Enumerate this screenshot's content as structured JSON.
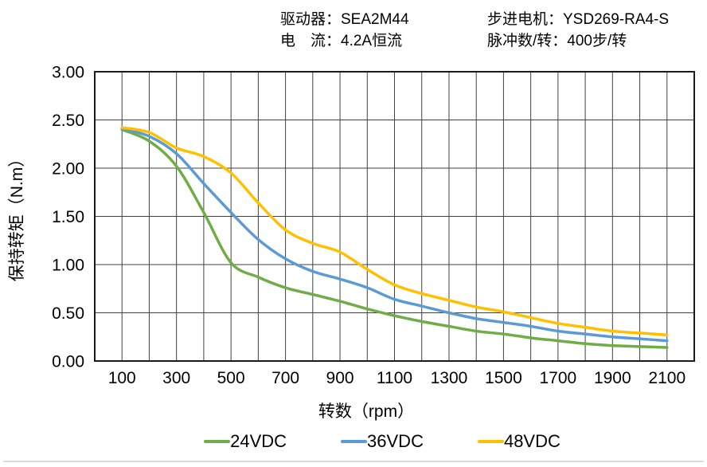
{
  "header": {
    "driver": "驱动器：SEA2M44",
    "current": "电　流：4.2A恒流",
    "motor": "步进电机：YSD269-RA4-S",
    "pulses_per_rev": "脉冲数/转：400步/转"
  },
  "chart_data": {
    "type": "line",
    "title": "",
    "xlabel": "转数（rpm）",
    "ylabel": "保持转矩（N.m）",
    "xlim": [
      0,
      2200
    ],
    "ylim": [
      0,
      3
    ],
    "x_gridstep": 100,
    "y_gridstep": 0.5,
    "grid": true,
    "legend_position": "bottom",
    "x_ticks": [
      "100",
      "300",
      "500",
      "700",
      "900",
      "1100",
      "1300",
      "1500",
      "1700",
      "1900",
      "2100"
    ],
    "y_ticks": [
      "0.00",
      "0.50",
      "1.00",
      "1.50",
      "2.00",
      "2.50",
      "3.00"
    ],
    "x": [
      100,
      200,
      300,
      400,
      500,
      600,
      700,
      800,
      900,
      1000,
      1100,
      1200,
      1300,
      1400,
      1500,
      1600,
      1700,
      1800,
      1900,
      2000,
      2100
    ],
    "series": [
      {
        "name": "24VDC",
        "color": "#70AD47",
        "values": [
          2.4,
          2.28,
          2.02,
          1.54,
          1.02,
          0.87,
          0.76,
          0.69,
          0.62,
          0.54,
          0.47,
          0.41,
          0.36,
          0.31,
          0.28,
          0.24,
          0.21,
          0.18,
          0.16,
          0.15,
          0.14
        ]
      },
      {
        "name": "36VDC",
        "color": "#5B9BD5",
        "values": [
          2.41,
          2.33,
          2.15,
          1.84,
          1.54,
          1.26,
          1.06,
          0.93,
          0.85,
          0.76,
          0.64,
          0.57,
          0.5,
          0.44,
          0.4,
          0.36,
          0.31,
          0.28,
          0.25,
          0.23,
          0.21
        ]
      },
      {
        "name": "48VDC",
        "color": "#FFC000",
        "values": [
          2.42,
          2.37,
          2.21,
          2.12,
          1.95,
          1.64,
          1.36,
          1.22,
          1.13,
          0.95,
          0.79,
          0.7,
          0.63,
          0.56,
          0.51,
          0.45,
          0.39,
          0.35,
          0.31,
          0.29,
          0.27
        ]
      }
    ]
  },
  "colors": {
    "grid": "#404040",
    "border": "#1a1a1a",
    "bottom_rule": "#d9d9d9"
  }
}
